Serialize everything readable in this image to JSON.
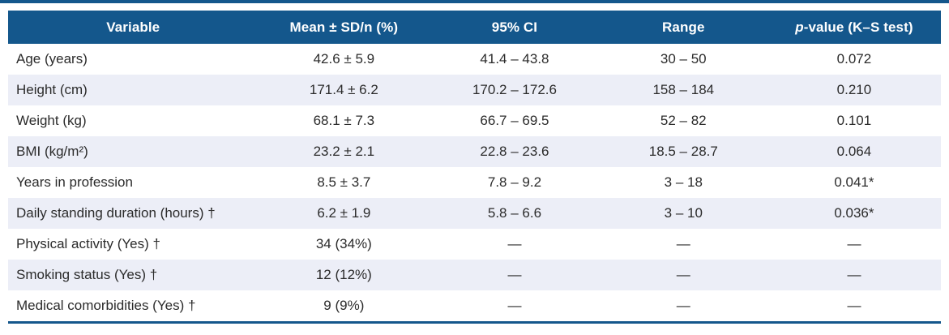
{
  "colors": {
    "header_blue": "#14578c",
    "row_alt_lavender": "#eceef7",
    "body_text": "#2b2b2b",
    "header_text": "#ffffff"
  },
  "table": {
    "columns": {
      "variable": "Variable",
      "mean": "Mean ± SD/n (%)",
      "ci": "95% CI",
      "range": "Range"
    },
    "p_column": {
      "italic": "p",
      "rest": "-value (K–S test)"
    },
    "rows": [
      {
        "variable": "Age (years)",
        "mean": "42.6 ± 5.9",
        "ci": "41.4 – 43.8",
        "range": "30 – 50",
        "p": "0.072"
      },
      {
        "variable": "Height (cm)",
        "mean": "171.4 ± 6.2",
        "ci": "170.2 – 172.6",
        "range": "158 – 184",
        "p": "0.210"
      },
      {
        "variable": "Weight (kg)",
        "mean": "68.1 ± 7.3",
        "ci": "66.7 – 69.5",
        "range": "52 – 82",
        "p": "0.101"
      },
      {
        "variable": "BMI (kg/m²)",
        "mean": "23.2 ± 2.1",
        "ci": "22.8 – 23.6",
        "range": "18.5 – 28.7",
        "p": "0.064"
      },
      {
        "variable": "Years in profession",
        "mean": "8.5 ± 3.7",
        "ci": "7.8 – 9.2",
        "range": "3 – 18",
        "p": "0.041*"
      },
      {
        "variable": "Daily standing duration (hours) †",
        "mean": "6.2 ± 1.9",
        "ci": "5.8 – 6.6",
        "range": "3 – 10",
        "p": "0.036*"
      },
      {
        "variable": "Physical activity (Yes) †",
        "mean": "34 (34%)",
        "ci": "—",
        "range": "—",
        "p": "—"
      },
      {
        "variable": "Smoking status (Yes) †",
        "mean": "12 (12%)",
        "ci": "—",
        "range": "—",
        "p": "—"
      },
      {
        "variable": "Medical comorbidities (Yes) †",
        "mean": "9 (9%)",
        "ci": "—",
        "range": "—",
        "p": "—"
      }
    ]
  }
}
